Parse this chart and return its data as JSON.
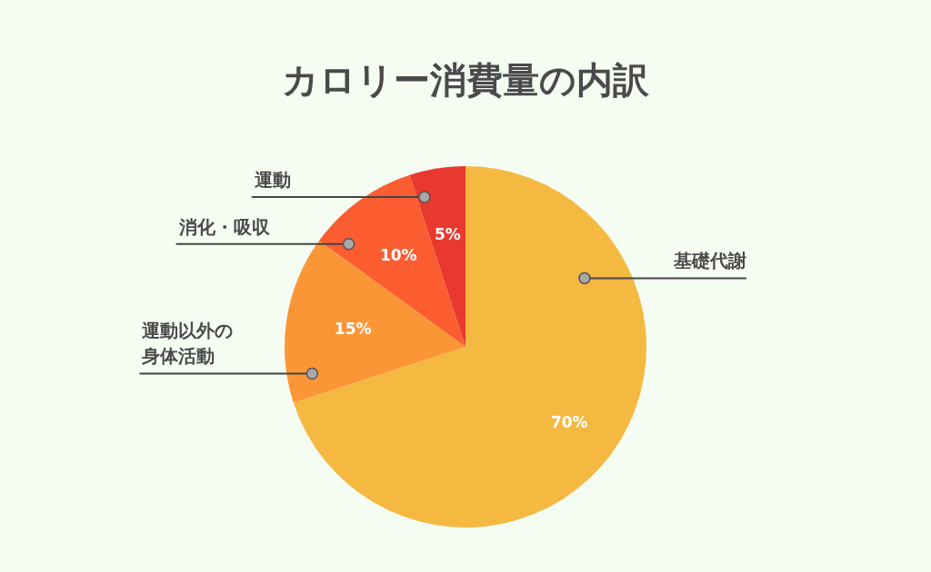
{
  "chart_data": {
    "type": "pie",
    "title": "カロリー消費量の内訳",
    "categories": [
      "基礎代謝",
      "運動以外の身体活動",
      "消化・吸収",
      "運動"
    ],
    "values": [
      70,
      15,
      10,
      5
    ],
    "colors": [
      "#f5b942",
      "#fb9637",
      "#fb5d30",
      "#e9392f"
    ],
    "value_labels": [
      "70%",
      "15%",
      "10%",
      "5%"
    ]
  }
}
